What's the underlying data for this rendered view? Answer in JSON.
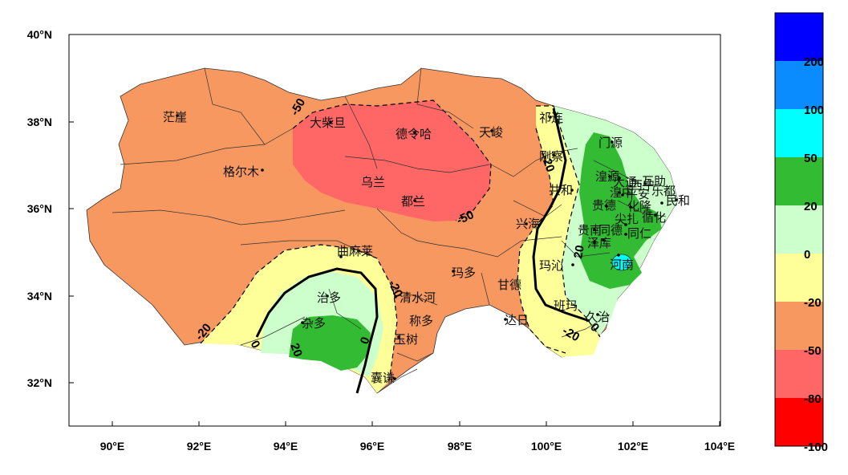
{
  "map": {
    "x_ticks": [
      "90°E",
      "92°E",
      "94°E",
      "96°E",
      "98°E",
      "100°E",
      "102°E",
      "104°E"
    ],
    "y_ticks": [
      "40°N",
      "38°N",
      "36°N",
      "34°N",
      "32°N"
    ],
    "places": [
      "茫崖",
      "大柴旦",
      "德令哈",
      "天峻",
      "祁连",
      "门源",
      "刚察",
      "大通",
      "西宁",
      "互助",
      "平安",
      "乐都",
      "民和",
      "湟源",
      "湟中",
      "化隆",
      "循化",
      "尖扎",
      "同仁",
      "共和",
      "贵德",
      "贵南",
      "泽库",
      "同德",
      "兴海",
      "玛沁",
      "河南",
      "玛多",
      "久治",
      "班玛",
      "甘德",
      "达日",
      "格尔木",
      "都兰",
      "乌兰",
      "曲麻莱",
      "治多",
      "杂多",
      "玉树",
      "称多",
      "清水河",
      "囊谦"
    ],
    "contour_labels": [
      "-50",
      "-50",
      "-20",
      "-20",
      "-20",
      "0",
      "0",
      "20",
      "20",
      "-20",
      "0"
    ]
  },
  "colorbar": {
    "labels": [
      "200",
      "100",
      "50",
      "20",
      "0",
      "-20",
      "-50",
      "-80",
      "-100"
    ],
    "colors": [
      "#0000ff",
      "#0a8cff",
      "#00ffff",
      "#33bb33",
      "#ccffcc",
      "#ffff99",
      "#f79860",
      "#ff6666",
      "#ff0000"
    ]
  }
}
